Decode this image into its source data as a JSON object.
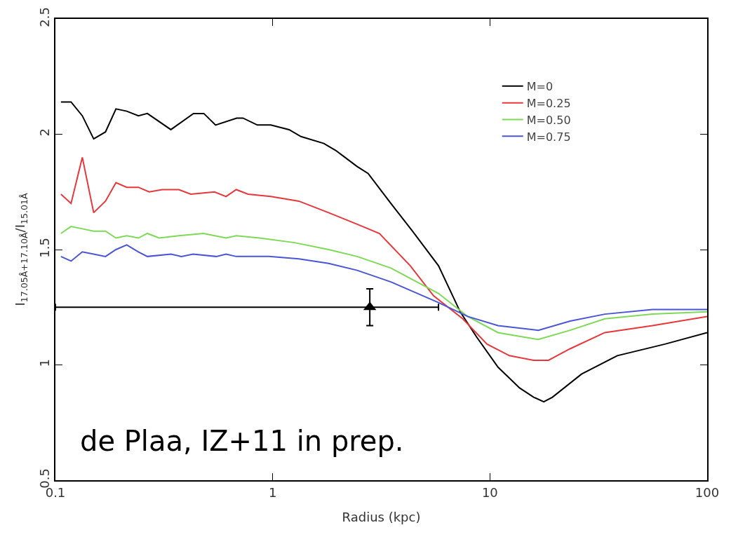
{
  "chart_data": {
    "type": "line",
    "xlabel": "Radius (kpc)",
    "ylabel": "I$_{17.05Å+17.10Å}$/I$_{15.01Å}$",
    "log": "x",
    "xlim": [
      0.1,
      100
    ],
    "xticks": [
      0.1,
      1,
      10,
      100
    ],
    "ylim": [
      0.5,
      2.5
    ],
    "yticks": [
      0.5,
      1,
      1.5,
      2,
      2.5
    ],
    "grid": false,
    "legend": "top right",
    "marker": "none",
    "line_style": "solid",
    "annotations": [
      "de Plaa, IZ+11 in prep."
    ],
    "series": [
      {
        "name": "M=0",
        "color": "#000000",
        "x": [
          0.106,
          0.118,
          0.133,
          0.15,
          0.17,
          0.19,
          0.213,
          0.241,
          0.265,
          0.34,
          0.432,
          0.482,
          0.546,
          0.683,
          0.73,
          0.85,
          0.98,
          1.19,
          1.35,
          1.72,
          1.95,
          2.15,
          2.45,
          2.75,
          3.5,
          4.4,
          5.8,
          7.3,
          8.7,
          10.9,
          13.7,
          15.9,
          17.7,
          19.4,
          26.4,
          38.6,
          63.9,
          100
        ],
        "values": [
          2.14,
          2.14,
          2.08,
          1.98,
          2.01,
          2.11,
          2.1,
          2.08,
          2.09,
          2.02,
          2.09,
          2.09,
          2.04,
          2.07,
          2.07,
          2.04,
          2.04,
          2.02,
          1.99,
          1.96,
          1.93,
          1.9,
          1.86,
          1.83,
          1.7,
          1.58,
          1.43,
          1.23,
          1.12,
          0.99,
          0.9,
          0.86,
          0.84,
          0.86,
          0.96,
          1.04,
          1.09,
          1.14
        ]
      },
      {
        "name": "M=0.25",
        "color": "#e8373a",
        "x": [
          0.106,
          0.118,
          0.133,
          0.15,
          0.17,
          0.19,
          0.213,
          0.241,
          0.27,
          0.31,
          0.37,
          0.42,
          0.54,
          0.61,
          0.68,
          0.77,
          0.98,
          1.32,
          1.81,
          2.45,
          3.1,
          4.3,
          5.5,
          7.5,
          9.7,
          12.3,
          15.9,
          18.6,
          23.4,
          33.8,
          56,
          100
        ],
        "values": [
          1.74,
          1.7,
          1.9,
          1.66,
          1.71,
          1.79,
          1.77,
          1.77,
          1.75,
          1.76,
          1.76,
          1.74,
          1.75,
          1.73,
          1.76,
          1.74,
          1.73,
          1.71,
          1.66,
          1.61,
          1.57,
          1.43,
          1.3,
          1.2,
          1.09,
          1.04,
          1.02,
          1.02,
          1.07,
          1.14,
          1.17,
          1.21
        ]
      },
      {
        "name": "M=0.50",
        "color": "#7ed957",
        "x": [
          0.106,
          0.118,
          0.133,
          0.15,
          0.17,
          0.19,
          0.213,
          0.241,
          0.265,
          0.3,
          0.37,
          0.48,
          0.61,
          0.68,
          0.87,
          1.26,
          1.81,
          2.45,
          3.5,
          5.8,
          7.9,
          10.9,
          16.7,
          23.4,
          33.8,
          56,
          100
        ],
        "values": [
          1.57,
          1.6,
          1.59,
          1.58,
          1.58,
          1.55,
          1.56,
          1.55,
          1.57,
          1.55,
          1.56,
          1.57,
          1.55,
          1.56,
          1.55,
          1.53,
          1.5,
          1.47,
          1.42,
          1.31,
          1.21,
          1.14,
          1.11,
          1.15,
          1.2,
          1.22,
          1.23
        ]
      },
      {
        "name": "M=0.75",
        "color": "#4a55d6",
        "x": [
          0.106,
          0.118,
          0.133,
          0.15,
          0.17,
          0.19,
          0.213,
          0.241,
          0.265,
          0.34,
          0.38,
          0.43,
          0.55,
          0.61,
          0.68,
          0.96,
          1.32,
          1.81,
          2.45,
          3.5,
          5.8,
          7.9,
          10.9,
          16.7,
          23.4,
          33.8,
          56,
          100
        ],
        "values": [
          1.47,
          1.45,
          1.49,
          1.48,
          1.47,
          1.5,
          1.52,
          1.49,
          1.47,
          1.48,
          1.47,
          1.48,
          1.47,
          1.48,
          1.47,
          1.47,
          1.46,
          1.44,
          1.41,
          1.36,
          1.27,
          1.21,
          1.17,
          1.15,
          1.19,
          1.22,
          1.24,
          1.24
        ]
      },
      {
        "type": "scatter",
        "marker": "triangle",
        "color": "#000000",
        "x": [
          2.8
        ],
        "values": [
          1.25
        ],
        "errors": [
          [
            1.17,
            1.33
          ]
        ],
        "xerrors": [
          [
            0.1,
            5.8
          ]
        ]
      }
    ]
  }
}
